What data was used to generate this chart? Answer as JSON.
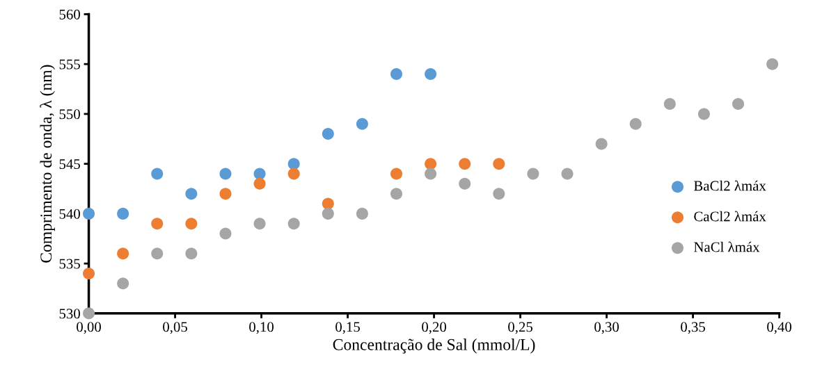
{
  "chart_data": {
    "type": "scatter",
    "xlabel": "Concentração de Sal (mmol/L)",
    "ylabel": "Comprimento de onda, λ (nm)",
    "xlim": [
      0,
      0.4
    ],
    "xticks": [
      {
        "value": 0,
        "label": "0,00"
      },
      {
        "value": 0.05,
        "label": "0,05"
      },
      {
        "value": 0.1,
        "label": "0,10"
      },
      {
        "value": 0.15,
        "label": "0,15"
      },
      {
        "value": 0.2,
        "label": "0,20"
      },
      {
        "value": 0.25,
        "label": "0,25"
      },
      {
        "value": 0.3,
        "label": "0,30"
      },
      {
        "value": 0.35,
        "label": "0,35"
      },
      {
        "value": 0.4,
        "label": "0,40"
      }
    ],
    "ylim": [
      530,
      560
    ],
    "yticks": [
      530,
      535,
      540,
      545,
      550,
      555,
      560
    ],
    "grid": false,
    "legend": "right",
    "marker": "circle",
    "x": [
      0,
      0.0198,
      0.0396,
      0.0594,
      0.0792,
      0.099,
      0.1188,
      0.1386,
      0.1584,
      0.1782,
      0.198,
      0.2178,
      0.2376,
      0.2574,
      0.2772,
      0.297,
      0.3168,
      0.3366,
      0.3564,
      0.3762,
      0.396
    ],
    "series": [
      {
        "name": "BaCl2 λmáx",
        "color": "#5b9bd5",
        "values": [
          540,
          540,
          544,
          542,
          544,
          544,
          545,
          548,
          549,
          554,
          554,
          null,
          null,
          null,
          null,
          null,
          null,
          null,
          null,
          null,
          null
        ]
      },
      {
        "name": "CaCl2 λmáx",
        "color": "#ed7d31",
        "values": [
          534,
          536,
          539,
          539,
          542,
          543,
          544,
          541,
          null,
          544,
          545,
          545,
          545,
          null,
          null,
          null,
          null,
          null,
          null,
          null,
          null
        ]
      },
      {
        "name": "NaCl λmáx",
        "color": "#a5a5a5",
        "values": [
          530,
          533,
          536,
          536,
          538,
          539,
          539,
          540,
          540,
          542,
          544,
          543,
          542,
          544,
          544,
          547,
          549,
          551,
          550,
          551,
          555
        ]
      }
    ]
  }
}
